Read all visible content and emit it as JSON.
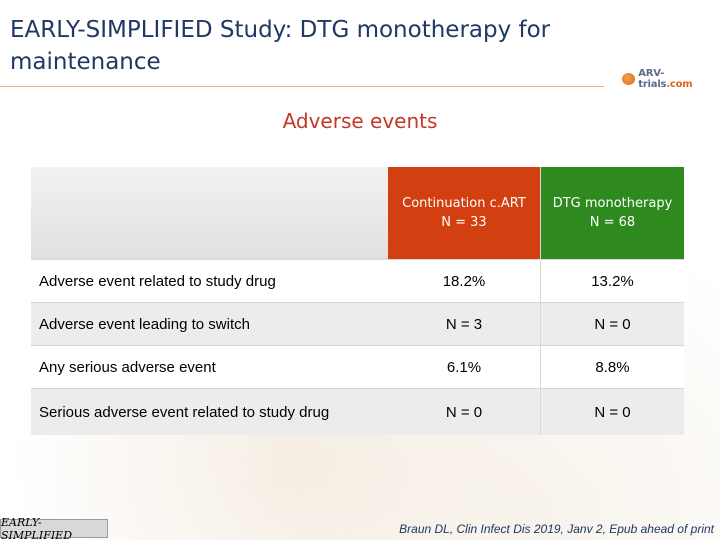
{
  "slide": {
    "title": "EARLY-SIMPLIFIED Study: DTG monotherapy for maintenance",
    "subtitle": "Adverse events",
    "logo": {
      "brand": "ARV-trials",
      "domain": ".com"
    },
    "footer_tag": "EARLY-SIMPLIFIED",
    "citation": "Braun DL, Clin Infect Dis 2019, Janv 2, Epub ahead of print"
  },
  "table": {
    "columns": [
      {
        "name": "Continuation c.ART",
        "n": "N = 33",
        "color": "#d23f10"
      },
      {
        "name": "DTG monotherapy",
        "n": "N = 68",
        "color": "#2e8a1e"
      }
    ],
    "rows": [
      {
        "label": "Adverse event related to study drug",
        "values": [
          "18.2%",
          "13.2%"
        ]
      },
      {
        "label": "Adverse event leading to switch",
        "values": [
          "N = 3",
          "N = 0"
        ]
      },
      {
        "label": "Any serious adverse event",
        "values": [
          "6.1%",
          "8.8%"
        ]
      },
      {
        "label": "Serious adverse event related to study drug",
        "values": [
          "N = 0",
          "N = 0"
        ]
      }
    ]
  }
}
